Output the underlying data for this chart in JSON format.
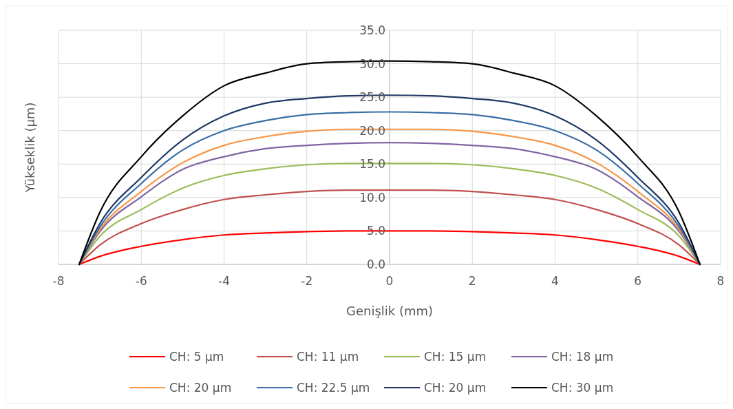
{
  "chart_data": {
    "type": "line",
    "xlabel": "Genişlik (mm)",
    "ylabel": "Yükseklik (µm)",
    "xlim": [
      -8,
      8
    ],
    "xticks": [
      -8,
      -6,
      -4,
      -2,
      0,
      2,
      4,
      6,
      8
    ],
    "ylim": [
      0,
      35
    ],
    "yticks": [
      {
        "value": 0,
        "label": "0.0"
      },
      {
        "value": 5,
        "label": "5.0"
      },
      {
        "value": 10,
        "label": "10.0"
      },
      {
        "value": 15,
        "label": "15.0"
      },
      {
        "value": 20,
        "label": "20.0"
      },
      {
        "value": 25,
        "label": "25.0"
      },
      {
        "value": 30,
        "label": "30.0"
      },
      {
        "value": 35,
        "label": "35.0"
      }
    ],
    "grid": true,
    "legend": "bottom",
    "marker": "none",
    "line_style": "solid",
    "x": [
      -7.5,
      -7,
      -6,
      -5,
      -4,
      -3,
      -2,
      -1,
      0,
      1,
      2,
      3,
      4,
      5,
      6,
      7,
      7.5
    ],
    "series": [
      {
        "name": "CH: 5 µm",
        "color": "#ff0000",
        "values": [
          0,
          1.2,
          2.7,
          3.7,
          4.4,
          4.7,
          4.9,
          5.0,
          5.0,
          5.0,
          4.9,
          4.7,
          4.4,
          3.7,
          2.7,
          1.2,
          0
        ]
      },
      {
        "name": "CH: 11 µm",
        "color": "#c0504d",
        "values": [
          0,
          2.9,
          6.1,
          8.2,
          9.7,
          10.4,
          10.9,
          11.1,
          11.1,
          11.1,
          10.9,
          10.4,
          9.7,
          8.2,
          6.1,
          2.9,
          0
        ]
      },
      {
        "name": "CH: 15 µm",
        "color": "#9bbb59",
        "values": [
          0,
          4.2,
          8.2,
          11.4,
          13.3,
          14.3,
          14.9,
          15.1,
          15.1,
          15.1,
          14.9,
          14.3,
          13.3,
          11.4,
          8.2,
          4.2,
          0
        ]
      },
      {
        "name": "CH: 18 µm",
        "color": "#8064a2",
        "values": [
          0,
          4.9,
          10.1,
          14.2,
          16.1,
          17.3,
          17.8,
          18.1,
          18.2,
          18.1,
          17.8,
          17.3,
          16.1,
          14.2,
          10.1,
          4.9,
          0
        ]
      },
      {
        "name": "CH: 20 µm",
        "color": "#f79646",
        "values": [
          0,
          5.2,
          10.9,
          15.2,
          17.8,
          19.1,
          19.9,
          20.2,
          20.2,
          20.2,
          19.9,
          19.1,
          17.8,
          15.2,
          10.9,
          5.2,
          0
        ]
      },
      {
        "name": "CH: 22.5 µm",
        "color": "#3a6ea5",
        "values": [
          0,
          5.6,
          12.1,
          17.1,
          20.0,
          21.5,
          22.4,
          22.7,
          22.8,
          22.7,
          22.4,
          21.5,
          20.0,
          17.1,
          12.1,
          5.6,
          0
        ]
      },
      {
        "name": "CH: 20 µm",
        "color": "#1f3864",
        "values": [
          0,
          6.1,
          13.0,
          18.6,
          22.2,
          24.1,
          24.8,
          25.2,
          25.3,
          25.2,
          24.8,
          24.1,
          22.2,
          18.6,
          13.0,
          6.1,
          0
        ]
      },
      {
        "name": "CH: 30 µm",
        "color": "#000000",
        "values": [
          0,
          7.8,
          16.1,
          22.2,
          26.7,
          28.6,
          30.0,
          30.3,
          30.4,
          30.3,
          30.0,
          28.6,
          26.7,
          22.2,
          16.1,
          7.8,
          0
        ]
      }
    ]
  }
}
